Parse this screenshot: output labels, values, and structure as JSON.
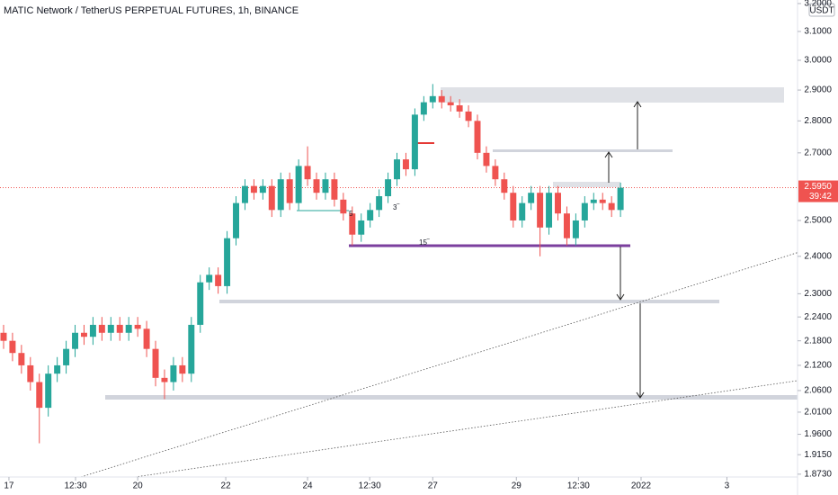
{
  "chart_data": {
    "type": "candlestick",
    "title": "MATIC Network / TetherUS PERPETUAL FUTURES, 1h, BINANCE",
    "currency": "USDT",
    "log_scale": true,
    "up_color": "#26a69a",
    "down_color": "#ef5350",
    "ylim": [
      1.867,
      3.213
    ],
    "yticks": [
      {
        "value": 3.2,
        "label": "3.2000"
      },
      {
        "value": 3.1,
        "label": "3.1000"
      },
      {
        "value": 3.0,
        "label": "3.0000"
      },
      {
        "value": 2.9,
        "label": "2.9000"
      },
      {
        "value": 2.8,
        "label": "2.8000"
      },
      {
        "value": 2.7,
        "label": "2.7000"
      },
      {
        "value": 2.5,
        "label": "2.5000"
      },
      {
        "value": 2.4,
        "label": "2.4000"
      },
      {
        "value": 2.3,
        "label": "2.3000"
      },
      {
        "value": 2.24,
        "label": "2.2400"
      },
      {
        "value": 2.18,
        "label": "2.1800"
      },
      {
        "value": 2.12,
        "label": "2.1200"
      },
      {
        "value": 2.06,
        "label": "2.0600"
      },
      {
        "value": 2.01,
        "label": "2.0100"
      },
      {
        "value": 1.96,
        "label": "1.9600"
      },
      {
        "value": 1.915,
        "label": "1.9150"
      },
      {
        "value": 1.873,
        "label": "1.8730"
      }
    ],
    "xlim": [
      -0.4,
      88.8
    ],
    "xticks": [
      {
        "value": 0.6,
        "label": "17"
      },
      {
        "value": 8.05,
        "label": "12:30"
      },
      {
        "value": 15,
        "label": "20"
      },
      {
        "value": 24.85,
        "label": "22"
      },
      {
        "value": 34,
        "label": "24"
      },
      {
        "value": 40.95,
        "label": "12:30"
      },
      {
        "value": 48,
        "label": "27"
      },
      {
        "value": 57.35,
        "label": "29"
      },
      {
        "value": 64.3,
        "label": "12:30"
      },
      {
        "value": 71.3,
        "label": "2022"
      },
      {
        "value": 80.9,
        "label": "3"
      }
    ],
    "last_price": {
      "value": 2.595,
      "label": "2.5950"
    },
    "countdown": "39:42",
    "annotations": [
      "5",
      "3‾",
      "15‾"
    ],
    "open": [
      2.2,
      2.18,
      2.15,
      2.12,
      2.08,
      2.02,
      2.1,
      2.12,
      2.16,
      2.2,
      2.19,
      2.22,
      2.2,
      2.22,
      2.2,
      2.22,
      2.21,
      2.16,
      2.09,
      2.08,
      2.12,
      2.1,
      2.22,
      2.33,
      2.35,
      2.32,
      2.45,
      2.55,
      2.6,
      2.58,
      2.6,
      2.53,
      2.62,
      2.55,
      2.66,
      2.62,
      2.58,
      2.62,
      2.56,
      2.52,
      2.46,
      2.5,
      2.53,
      2.57,
      2.62,
      2.68,
      2.65,
      2.82,
      2.86,
      2.88,
      2.86,
      2.85,
      2.83,
      2.8,
      2.7,
      2.66,
      2.62,
      2.58,
      2.5,
      2.55,
      2.58,
      2.48,
      2.58,
      2.52,
      2.45,
      2.5,
      2.55,
      2.56,
      2.55,
      2.53
    ],
    "high": [
      2.22,
      2.2,
      2.17,
      2.14,
      2.1,
      2.12,
      2.14,
      2.18,
      2.22,
      2.22,
      2.24,
      2.24,
      2.24,
      2.24,
      2.24,
      2.24,
      2.23,
      2.18,
      2.11,
      2.14,
      2.14,
      2.24,
      2.35,
      2.37,
      2.37,
      2.47,
      2.57,
      2.62,
      2.62,
      2.62,
      2.62,
      2.64,
      2.64,
      2.68,
      2.72,
      2.64,
      2.64,
      2.64,
      2.58,
      2.54,
      2.52,
      2.55,
      2.59,
      2.64,
      2.7,
      2.7,
      2.84,
      2.88,
      2.92,
      2.9,
      2.88,
      2.87,
      2.85,
      2.82,
      2.72,
      2.68,
      2.64,
      2.6,
      2.57,
      2.6,
      2.6,
      2.6,
      2.6,
      2.54,
      2.52,
      2.57,
      2.58,
      2.58,
      2.57,
      2.61
    ],
    "low": [
      2.16,
      2.13,
      2.1,
      2.06,
      1.94,
      2.0,
      2.08,
      2.1,
      2.14,
      2.17,
      2.17,
      2.18,
      2.18,
      2.18,
      2.18,
      2.19,
      2.14,
      2.07,
      2.04,
      2.06,
      2.08,
      2.08,
      2.2,
      2.31,
      2.3,
      2.3,
      2.43,
      2.53,
      2.56,
      2.56,
      2.51,
      2.51,
      2.53,
      2.53,
      2.6,
      2.56,
      2.56,
      2.54,
      2.5,
      2.43,
      2.44,
      2.48,
      2.51,
      2.55,
      2.6,
      2.63,
      2.63,
      2.8,
      2.84,
      2.84,
      2.83,
      2.81,
      2.78,
      2.68,
      2.64,
      2.6,
      2.56,
      2.48,
      2.48,
      2.53,
      2.4,
      2.46,
      2.5,
      2.43,
      2.43,
      2.48,
      2.53,
      2.53,
      2.51,
      2.51
    ],
    "close": [
      2.18,
      2.15,
      2.12,
      2.08,
      2.02,
      2.1,
      2.12,
      2.16,
      2.2,
      2.19,
      2.22,
      2.2,
      2.22,
      2.2,
      2.22,
      2.21,
      2.16,
      2.09,
      2.08,
      2.12,
      2.1,
      2.22,
      2.33,
      2.35,
      2.32,
      2.45,
      2.55,
      2.6,
      2.58,
      2.6,
      2.53,
      2.62,
      2.55,
      2.66,
      2.62,
      2.58,
      2.62,
      2.56,
      2.52,
      2.46,
      2.5,
      2.53,
      2.57,
      2.62,
      2.68,
      2.65,
      2.82,
      2.86,
      2.88,
      2.86,
      2.85,
      2.83,
      2.8,
      2.7,
      2.66,
      2.62,
      2.58,
      2.5,
      2.55,
      2.58,
      2.48,
      2.58,
      2.52,
      2.45,
      2.5,
      2.55,
      2.56,
      2.55,
      2.53,
      2.595
    ]
  }
}
